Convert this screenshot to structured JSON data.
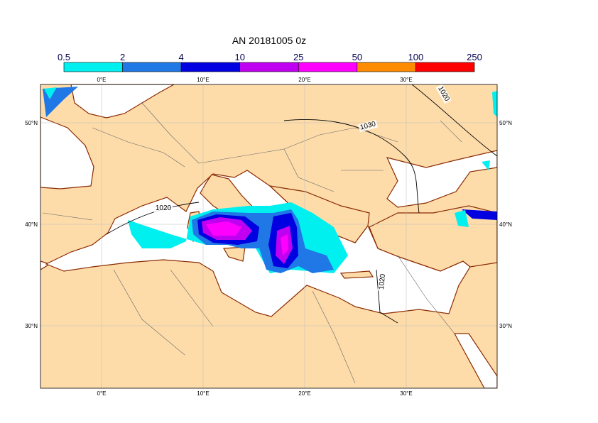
{
  "title": "AN  20181005 0z",
  "colorbar": {
    "levels": [
      0.5,
      2,
      4,
      10,
      25,
      50,
      100,
      250
    ],
    "colors": [
      "#00f0f0",
      "#1f78e6",
      "#0000e0",
      "#c000f0",
      "#ff00ff",
      "#ff8c00",
      "#ff0000"
    ]
  },
  "lon_labels": [
    "0°E",
    "10°E",
    "20°E",
    "30°E"
  ],
  "lat_labels": [
    "50°N",
    "40°N",
    "30°N"
  ],
  "contour_labels": [
    1020,
    1030,
    1020,
    1020
  ]
}
